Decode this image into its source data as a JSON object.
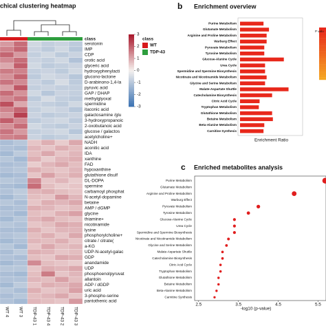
{
  "chart_data": [
    {
      "type": "heatmap",
      "title": "chical clustering heatmap",
      "columns": [
        "WT 4",
        "WT 3",
        "TDP-43 1",
        "TDP-43 4",
        "TDP-43 2",
        "TDP-43 3"
      ],
      "column_classes": [
        0,
        0,
        1,
        1,
        1,
        1
      ],
      "class_title": "class",
      "series": [
        {
          "name": "WT",
          "color": "#d7191c"
        },
        {
          "name": "TDP-43",
          "color": "#2e9e3e"
        }
      ],
      "rows": [
        "serotonin",
        "IMP",
        "CDP",
        "orotic acid",
        "glyceric acid",
        "hydroxyphenylacti",
        "glucono-lactone",
        "D-arabinono-1,4-la",
        "pyruvic acid",
        "GAP / DHAP",
        "methylglyoxal",
        "spermidine",
        "itaconic acid",
        "galactosamine /glu",
        "3-hydroxypropanoic",
        "2-oxobutanoic acid",
        "glucose / galactos",
        "acetylcholine+",
        "NADH",
        "aconitic acid",
        "IDA",
        "xanthine",
        "FAD",
        "hypoxanthine",
        "glutathione disulf",
        "DL-DOPA",
        "spermine",
        "carbamoyl phosphat",
        "N-acetyl-dopamine",
        "betaine",
        "AMP / dGMP",
        "glycine",
        "thiamine+",
        "nicotinamide",
        "lysine",
        "phosphorylcholine+",
        "citrate / citrate(",
        "a-KG",
        "UDP-N-acetyl-galac",
        "GDP",
        "anandamide",
        "UDP",
        "phosphoenolpyruvat",
        "allantoin",
        "ADP / dGDP",
        "uric acid",
        "3-phospho-serine",
        "pantothenic acid"
      ],
      "values": [
        [
          1.2,
          1.8,
          -0.6,
          -0.8,
          -0.7,
          -0.9
        ],
        [
          1.5,
          1.9,
          -0.7,
          -0.9,
          -0.6,
          -1.0
        ],
        [
          1.9,
          1.2,
          -0.8,
          -0.6,
          -0.9,
          -0.7
        ],
        [
          1.4,
          1.8,
          -0.7,
          -0.8,
          -0.6,
          -1.1
        ],
        [
          1.0,
          2.0,
          -0.6,
          -0.9,
          -0.8,
          -0.7
        ],
        [
          1.6,
          1.5,
          -0.8,
          -0.7,
          -0.9,
          -0.6
        ],
        [
          1.3,
          1.9,
          -0.9,
          -0.6,
          -0.7,
          -1.0
        ],
        [
          1.7,
          1.4,
          -0.7,
          -0.9,
          -0.5,
          -0.9
        ],
        [
          1.1,
          2.1,
          -0.8,
          -0.7,
          -0.8,
          -0.8
        ],
        [
          1.8,
          1.3,
          -0.6,
          -1.0,
          -0.7,
          -0.8
        ],
        [
          1.4,
          1.7,
          -0.9,
          -0.5,
          -0.8,
          -0.9
        ],
        [
          2.2,
          1.0,
          -0.7,
          -0.8,
          -0.9,
          -0.6
        ],
        [
          1.5,
          1.9,
          -0.8,
          -0.6,
          -0.7,
          -1.0
        ],
        [
          1.2,
          2.4,
          -0.7,
          -0.9,
          -0.8,
          -0.7
        ],
        [
          2.0,
          1.4,
          -0.9,
          -0.7,
          -0.6,
          -0.9
        ],
        [
          1.3,
          1.8,
          -0.6,
          -0.8,
          -0.9,
          -0.7
        ],
        [
          1.7,
          1.2,
          -0.8,
          -0.7,
          -0.6,
          -1.0
        ],
        [
          1.5,
          1.6,
          -0.7,
          -0.9,
          -0.8,
          -0.6
        ],
        [
          -1.2,
          -1.0,
          0.6,
          0.9,
          0.5,
          1.0
        ],
        [
          -1.1,
          -1.2,
          0.8,
          0.6,
          0.9,
          0.7
        ],
        [
          -1.3,
          -0.9,
          0.7,
          1.0,
          0.6,
          0.8
        ],
        [
          -1.0,
          -1.3,
          0.9,
          0.5,
          0.8,
          0.9
        ],
        [
          -1.2,
          -1.1,
          0.5,
          0.8,
          1.0,
          0.7
        ],
        [
          -1.1,
          -1.0,
          0.9,
          0.7,
          0.6,
          0.8
        ],
        [
          -1.3,
          -1.2,
          0.6,
          1.1,
          0.7,
          0.9
        ],
        [
          -1.0,
          -1.1,
          1.5,
          0.6,
          0.8,
          0.5
        ],
        [
          -1.2,
          -1.3,
          1.8,
          0.7,
          0.5,
          0.6
        ],
        [
          -1.1,
          -0.9,
          0.8,
          0.9,
          0.7,
          0.6
        ],
        [
          -1.3,
          -1.0,
          0.7,
          0.6,
          1.2,
          0.8
        ],
        [
          -1.0,
          -1.2,
          0.6,
          0.9,
          0.8,
          1.0
        ],
        [
          -1.2,
          -1.1,
          0.9,
          0.8,
          0.6,
          0.7
        ],
        [
          -1.1,
          -1.3,
          0.7,
          0.6,
          0.9,
          1.1
        ],
        [
          -1.3,
          -1.0,
          0.8,
          1.0,
          0.7,
          0.6
        ],
        [
          -1.0,
          -1.1,
          0.6,
          0.7,
          1.0,
          0.9
        ],
        [
          -1.2,
          -1.2,
          0.9,
          0.6,
          0.8,
          0.8
        ],
        [
          -1.1,
          -1.0,
          0.7,
          0.9,
          0.6,
          1.0
        ],
        [
          -1.3,
          -1.1,
          0.8,
          0.7,
          0.9,
          0.6
        ],
        [
          -1.0,
          -1.3,
          0.6,
          1.0,
          0.7,
          0.8
        ],
        [
          -1.2,
          -0.9,
          0.9,
          0.8,
          0.6,
          0.7
        ],
        [
          -1.1,
          -1.2,
          0.7,
          0.6,
          1.0,
          0.9
        ],
        [
          -1.3,
          -1.1,
          1.4,
          0.7,
          0.6,
          0.5
        ],
        [
          -1.0,
          -1.0,
          0.6,
          0.9,
          0.8,
          1.0
        ],
        [
          -1.2,
          -1.3,
          0.7,
          1.6,
          0.6,
          0.8
        ],
        [
          -1.1,
          -1.1,
          0.8,
          0.7,
          1.1,
          0.7
        ],
        [
          -1.3,
          -0.9,
          0.6,
          0.9,
          0.8,
          1.0
        ],
        [
          -1.0,
          -1.2,
          0.9,
          0.6,
          0.7,
          1.1
        ],
        [
          -1.2,
          -1.0,
          0.7,
          0.8,
          1.0,
          0.6
        ],
        [
          -1.1,
          -1.3,
          0.8,
          0.7,
          0.6,
          1.2
        ]
      ],
      "zlim": [
        -3,
        3
      ],
      "zticks": [
        3,
        2,
        1,
        0,
        -1,
        -2,
        -3
      ],
      "colormap": [
        "#3b72b3",
        "#f5f1ee",
        "#a8152a"
      ]
    },
    {
      "type": "bar",
      "panel": "b",
      "title": "Enrichment overview",
      "orientation": "horizontal",
      "categories": [
        "Purine Metabolism",
        "Glutamate Metabolism",
        "Arginine and Proline Metabolism",
        "Warburg Effect",
        "Pyruvate Metabolism",
        "Tyrosine Metabolism",
        "Glucose-Alanine Cycle",
        "Urea Cycle",
        "Spermidine and Spermine Biosynthesis",
        "Nicotinate and Nicotinamide Metabolism",
        "Glycine and Serine Metabolism",
        "Malate-Aspartate Shuttle",
        "Catecholamine Biosynthesis",
        "Citric Acid Cycle",
        "Tryptophan Metabolism",
        "Glutathione Metabolism",
        "Betaine Metabolism",
        "Beta-Alanine Metabolism",
        "Carnitine Synthesis"
      ],
      "values": [
        3.0,
        3.7,
        3.4,
        3.4,
        3.1,
        3.1,
        5.6,
        3.2,
        3.2,
        3.4,
        3.2,
        6.2,
        4.1,
        2.5,
        2.4,
        4.1,
        4.2,
        3.1,
        3.0
      ],
      "color": "#e8281b",
      "xlim": [
        0,
        8
      ],
      "xlabel": "Enrichment Ratio",
      "colorbar_label": "P valu",
      "colorbar_colors": [
        "#e8281b",
        "#f5a623"
      ]
    },
    {
      "type": "scatter",
      "panel": "c",
      "title": "Enriched metabolites analysis",
      "categories": [
        "Purine Metabolism",
        "Glutamate Metabolism",
        "Arginine and Proline Metabolism",
        "Warburg Effect",
        "Pyruvate Metabolism",
        "Tyrosine Metabolism",
        "Glucose-Alanine Cycle",
        "Urea Cycle",
        "Spermidine and Spermine Biosynthesis",
        "Nicotinate and Nicotinamide Metabolism",
        "Glycine and Serine Metabolism",
        "Malate-Aspartate Shuttle",
        "Catecholamine Biosynthesis",
        "Citric Acid Cycle",
        "Tryptophan Metabolism",
        "Glutathione Metabolism",
        "Betaine Metabolism",
        "Beta-Alanine Metabolism",
        "Carnitine Synthesis"
      ],
      "values": [
        5.68,
        null,
        4.9,
        null,
        4.0,
        3.75,
        3.4,
        3.4,
        3.4,
        3.25,
        3.2,
        3.1,
        3.1,
        3.05,
        3.05,
        3.0,
        3.0,
        2.95,
        2.9
      ],
      "color": "#e01e1e",
      "xlim": [
        2.4,
        5.7
      ],
      "xticks": [
        2.5,
        3.5,
        4.5,
        5.5
      ],
      "xlabel": "-log10 (p-value)"
    }
  ]
}
